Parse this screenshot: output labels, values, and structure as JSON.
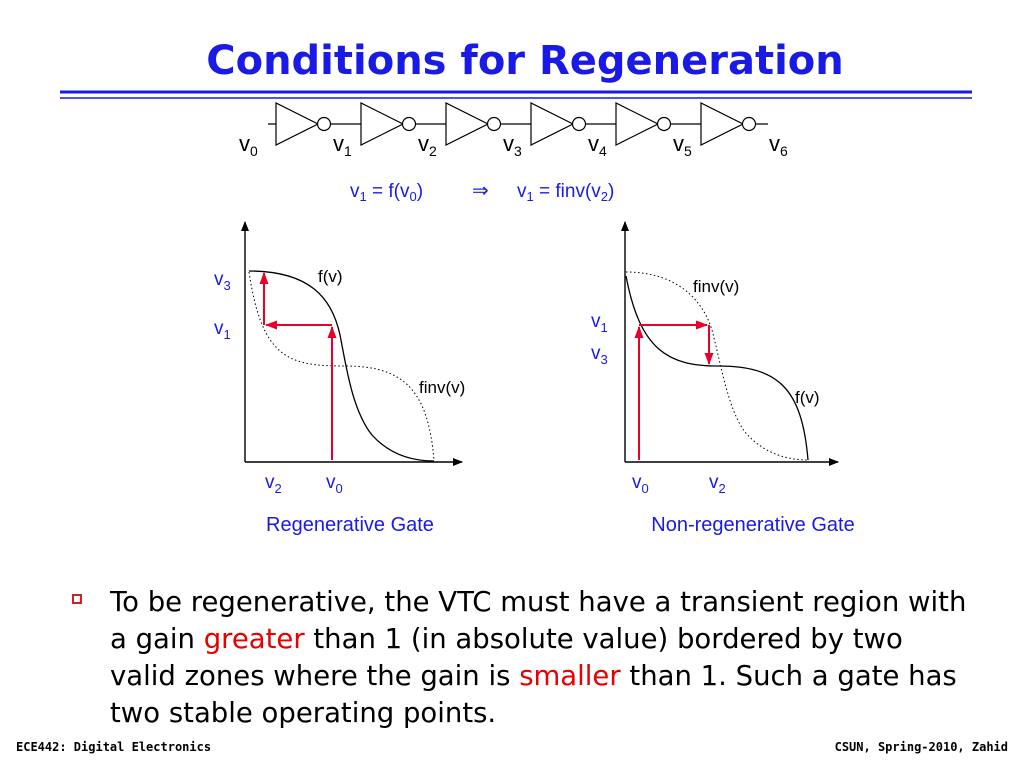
{
  "title": "Conditions for Regeneration",
  "chain": {
    "nodes": [
      {
        "base": "v",
        "sub": "0"
      },
      {
        "base": "v",
        "sub": "1"
      },
      {
        "base": "v",
        "sub": "2"
      },
      {
        "base": "v",
        "sub": "3"
      },
      {
        "base": "v",
        "sub": "4"
      },
      {
        "base": "v",
        "sub": "5"
      },
      {
        "base": "v",
        "sub": "6"
      }
    ]
  },
  "equation": {
    "left_base": "v",
    "left_sub": "1",
    "left_eq": " = f(v",
    "left_arg_sub": "0",
    "left_close": ")",
    "implies": "⇒",
    "right_base": "v",
    "right_sub": "1",
    "right_eq": " = finv(v",
    "right_arg_sub": "2",
    "right_close": ")"
  },
  "left_graph": {
    "caption": "Regenerative Gate",
    "curve1_label": "f(v)",
    "curve2_label": "finv(v)",
    "y_labels": [
      {
        "base": "v",
        "sub": "3"
      },
      {
        "base": "v",
        "sub": "1"
      }
    ],
    "x_labels": [
      {
        "base": "v",
        "sub": "2"
      },
      {
        "base": "v",
        "sub": "0"
      }
    ]
  },
  "right_graph": {
    "caption": "Non-regenerative Gate",
    "curve1_label": "finv(v)",
    "curve2_label": "f(v)",
    "y_labels": [
      {
        "base": "v",
        "sub": "1"
      },
      {
        "base": "v",
        "sub": "3"
      }
    ],
    "x_labels": [
      {
        "base": "v",
        "sub": "0"
      },
      {
        "base": "v",
        "sub": "2"
      }
    ]
  },
  "bullet": {
    "p1": "To be regenerative, the VTC must have a transient region with a gain ",
    "red1": "greater",
    "p2": " than 1 (in absolute value) bordered by two valid zones where the gain is ",
    "red2": "smaller",
    "p3": " than 1.  Such a gate has two stable operating points."
  },
  "footer": {
    "left": "ECE442: Digital Electronics",
    "right": "CSUN, Spring-2010, Zahid"
  },
  "colors": {
    "title": "#1a1ae6",
    "accent_red": "#e60000",
    "arrow_red": "#e8002a"
  }
}
